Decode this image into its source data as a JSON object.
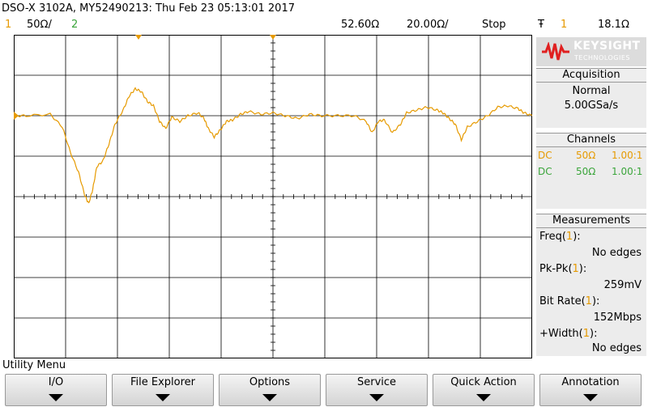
{
  "header": {
    "title": "DSO-X 3102A, MY52490213: Thu Feb 23 05:13:01 2017",
    "ch1_label": "1",
    "ch1_scale": "50Ω/",
    "ch2_label": "2",
    "time_delay": "52.60Ω",
    "time_scale": "20.00Ω/",
    "run_state": "Stop",
    "trigger_icon": "Ŧ",
    "trigger_source": "1",
    "trigger_level": "18.1Ω"
  },
  "logo": {
    "brand": "KEYSIGHT",
    "sub": "TECHNOLOGIES"
  },
  "acquisition": {
    "title": "Acquisition",
    "mode": "Normal",
    "rate": "5.00GSa/s"
  },
  "channels": {
    "title": "Channels",
    "rows": [
      {
        "coupling": "DC",
        "impedance": "50Ω",
        "probe": "1.00:1",
        "color": "#e69a00"
      },
      {
        "coupling": "DC",
        "impedance": "50Ω",
        "probe": "1.00:1",
        "color": "#3aa53a"
      }
    ]
  },
  "measurements": {
    "title": "Measurements",
    "items": [
      {
        "name": "Freq",
        "src": "1",
        "value": "No edges"
      },
      {
        "name": "Pk-Pk",
        "src": "1",
        "value": "259mV"
      },
      {
        "name": "Bit Rate",
        "src": "1",
        "value": "152Mbps"
      },
      {
        "name": "+Width",
        "src": "1",
        "value": "No edges"
      }
    ]
  },
  "utility_menu_label": "Utility Menu",
  "softkeys": [
    "I/O",
    "File Explorer",
    "Options",
    "Service",
    "Quick Action",
    "Annotation"
  ],
  "colors": {
    "channel1": "#e69a00",
    "channel2": "#3aa53a",
    "grid": "#000000"
  },
  "waveform": {
    "channel": "1",
    "description_points": [
      [
        0,
        0.0
      ],
      [
        0.3,
        0.0
      ],
      [
        0.9,
        0.05
      ],
      [
        1.2,
        -0.4
      ],
      [
        1.4,
        -1.3
      ],
      [
        1.6,
        -2.0
      ],
      [
        1.75,
        -2.8
      ],
      [
        1.85,
        -3.1
      ],
      [
        1.95,
        -2.6
      ],
      [
        2.05,
        -1.8
      ],
      [
        2.2,
        -1.6
      ],
      [
        2.35,
        -1.0
      ],
      [
        2.5,
        -0.3
      ],
      [
        2.7,
        0.2
      ],
      [
        2.85,
        0.7
      ],
      [
        3.0,
        0.95
      ],
      [
        3.15,
        0.85
      ],
      [
        3.3,
        0.5
      ],
      [
        3.45,
        0.35
      ],
      [
        3.6,
        -0.2
      ],
      [
        3.75,
        -0.45
      ],
      [
        3.9,
        -0.05
      ],
      [
        4.1,
        -0.2
      ],
      [
        4.3,
        -0.0
      ],
      [
        4.55,
        0.1
      ],
      [
        4.7,
        -0.1
      ],
      [
        4.8,
        -0.45
      ],
      [
        4.95,
        -0.75
      ],
      [
        5.1,
        -0.5
      ],
      [
        5.25,
        -0.2
      ],
      [
        5.4,
        -0.15
      ],
      [
        5.6,
        0.05
      ],
      [
        5.8,
        0.15
      ],
      [
        6.1,
        0.05
      ],
      [
        6.4,
        0.1
      ],
      [
        6.7,
        0.0
      ],
      [
        7.0,
        -0.1
      ],
      [
        7.3,
        0.05
      ],
      [
        7.6,
        0.0
      ],
      [
        8.0,
        0.0
      ],
      [
        8.4,
        0.0
      ],
      [
        8.7,
        -0.2
      ],
      [
        8.85,
        -0.6
      ],
      [
        9.0,
        -0.2
      ],
      [
        9.15,
        -0.15
      ],
      [
        9.35,
        -0.6
      ],
      [
        9.55,
        -0.3
      ],
      [
        9.7,
        0.1
      ],
      [
        9.95,
        0.2
      ],
      [
        10.2,
        0.3
      ],
      [
        10.45,
        0.2
      ],
      [
        10.6,
        0.1
      ],
      [
        10.75,
        -0.1
      ],
      [
        10.9,
        -0.3
      ],
      [
        11.05,
        -0.85
      ],
      [
        11.2,
        -0.4
      ],
      [
        11.45,
        -0.2
      ],
      [
        11.7,
        0.0
      ],
      [
        11.95,
        0.3
      ],
      [
        12.2,
        0.35
      ],
      [
        12.45,
        0.25
      ],
      [
        12.6,
        0.1
      ],
      [
        12.8,
        0.0
      ]
    ]
  }
}
